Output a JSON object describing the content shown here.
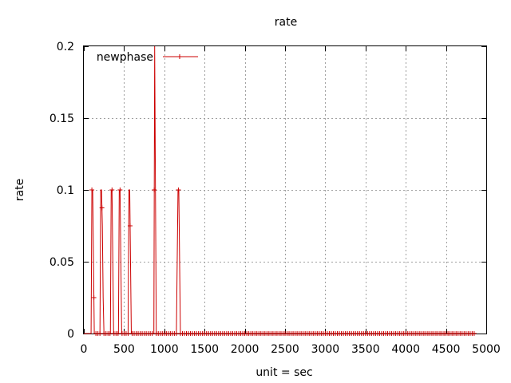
{
  "chart_data": {
    "type": "line",
    "title": "rate",
    "xlabel": "unit = sec",
    "ylabel": "rate",
    "xlim": [
      0,
      5000
    ],
    "ylim": [
      0,
      0.2
    ],
    "x_ticks": [
      0,
      500,
      1000,
      1500,
      2000,
      2500,
      3000,
      3500,
      4000,
      4500,
      5000
    ],
    "x_tick_labels": [
      "0",
      "500",
      "1000",
      "1500",
      "2000",
      "2500",
      "3000",
      "3500",
      "4000",
      "4500",
      "5000"
    ],
    "y_ticks": [
      0,
      0.05,
      0.1,
      0.15,
      0.2
    ],
    "y_tick_labels": [
      "0",
      "0.05",
      "0.1",
      "0.15",
      "0.2"
    ],
    "grid": true,
    "legend_position": "top-left",
    "series": [
      {
        "name": "newphase",
        "color": "#cc0000",
        "marker": "plus",
        "x": [
          0,
          90,
          100,
          110,
          120,
          130,
          140,
          150,
          160,
          170,
          180,
          190,
          200,
          210,
          220,
          230,
          240,
          250,
          260,
          270,
          280,
          290,
          300,
          310,
          320,
          330,
          340,
          350,
          360,
          370,
          380,
          390,
          400,
          410,
          420,
          430,
          440,
          450,
          460,
          470,
          480,
          490,
          500,
          510,
          520,
          530,
          540,
          550,
          560,
          570,
          580,
          590,
          600,
          610,
          620,
          630,
          640,
          650,
          660,
          670,
          680,
          690,
          700,
          710,
          720,
          730,
          740,
          750,
          760,
          770,
          780,
          790,
          800,
          810,
          820,
          830,
          840,
          850,
          860,
          870,
          880,
          890,
          900,
          910,
          920,
          930,
          940,
          950,
          960,
          970,
          980,
          990,
          1000,
          1010,
          1020,
          1030,
          1040,
          1050,
          1060,
          1070,
          1080,
          1090,
          1100,
          1110,
          1120,
          1130,
          1140,
          1150,
          1160,
          1170,
          1180,
          1190,
          1200,
          1210,
          1220,
          1230,
          1240,
          1250,
          4850
        ],
        "y": [
          0,
          0,
          0.1,
          0.1,
          0.05,
          0,
          0,
          0,
          0,
          0,
          0,
          0,
          0,
          0.1,
          0.1,
          0.075,
          0.025,
          0,
          0,
          0,
          0,
          0,
          0,
          0,
          0,
          0,
          0.1,
          0.1,
          0.05,
          0,
          0,
          0,
          0,
          0,
          0,
          0,
          0.1,
          0.1,
          0.05,
          0,
          0,
          0,
          0,
          0,
          0,
          0,
          0,
          0,
          0.1,
          0.1,
          0.05,
          0,
          0,
          0,
          0,
          0,
          0,
          0,
          0,
          0,
          0,
          0,
          0,
          0,
          0,
          0,
          0,
          0,
          0,
          0,
          0,
          0,
          0,
          0,
          0,
          0,
          0,
          0,
          0,
          0,
          0.2,
          0.1,
          0,
          0,
          0,
          0,
          0,
          0,
          0,
          0,
          0,
          0,
          0,
          0,
          0,
          0,
          0,
          0,
          0,
          0,
          0,
          0,
          0,
          0,
          0,
          0,
          0,
          0,
          0.05,
          0.1,
          0.1,
          0.05,
          0,
          0,
          0,
          0,
          0,
          0,
          0
        ]
      }
    ]
  }
}
